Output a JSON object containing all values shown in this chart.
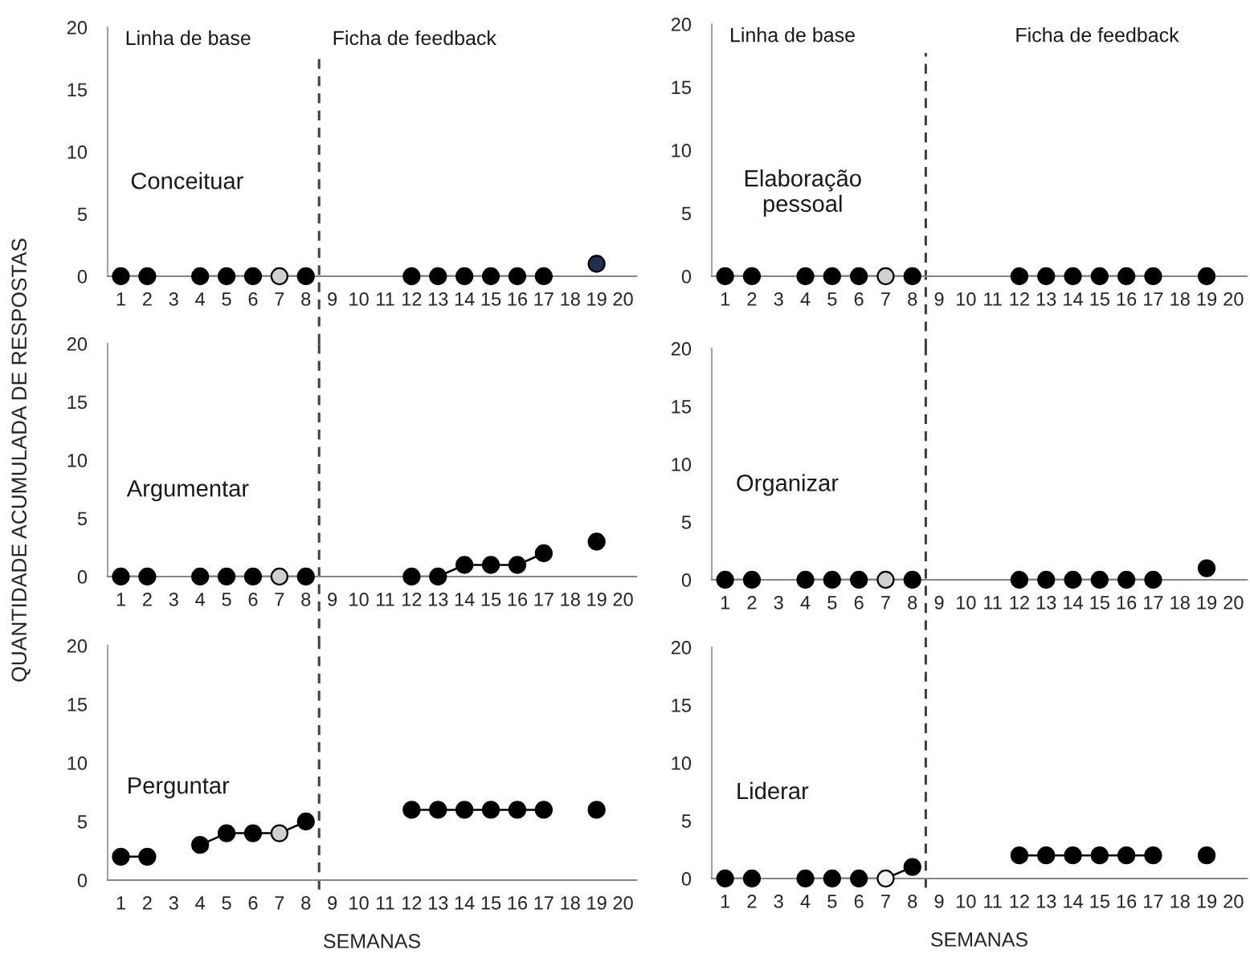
{
  "chart_data": [
    {
      "type": "line",
      "title": "Conceituar",
      "annotations": [
        "Linha de base",
        "Ficha de feedback"
      ],
      "x": [
        1,
        2,
        3,
        4,
        5,
        6,
        7,
        8,
        9,
        10,
        11,
        12,
        13,
        14,
        15,
        16,
        17,
        18,
        19
      ],
      "xlim": [
        0.5,
        20.5
      ],
      "xticks": [
        1,
        2,
        3,
        4,
        5,
        6,
        7,
        8,
        9,
        10,
        11,
        12,
        13,
        14,
        15,
        16,
        17,
        18,
        19,
        20
      ],
      "ylim": [
        0,
        20
      ],
      "yticks": [
        0,
        5,
        10,
        15,
        20
      ],
      "marker": "circle",
      "line_style": "solid",
      "series": [
        {
          "color": "#000000",
          "colors": [
            "#000000",
            "#000000",
            null,
            "#000000",
            "#000000",
            "#000000",
            "#d0d0d0",
            "#000000",
            null,
            null,
            null,
            "#000000",
            "#000000",
            "#000000",
            "#000000",
            "#000000",
            "#000000",
            null,
            "#1f3050"
          ],
          "values": [
            0,
            0,
            null,
            0,
            0,
            0,
            0,
            0,
            null,
            null,
            null,
            0,
            0,
            0,
            0,
            0,
            0,
            null,
            1
          ]
        }
      ],
      "ref_lines": [
        {
          "axis": "x",
          "value": 8.5,
          "color": "#404040",
          "line_style": "dashed"
        }
      ]
    },
    {
      "type": "line",
      "title": "Elaboração\npessoal",
      "annotations": [
        "Linha de base",
        "Ficha de feedback"
      ],
      "x": [
        1,
        2,
        3,
        4,
        5,
        6,
        7,
        8,
        9,
        10,
        11,
        12,
        13,
        14,
        15,
        16,
        17,
        18,
        19
      ],
      "xlim": [
        0.5,
        20.5
      ],
      "xticks": [
        1,
        2,
        3,
        4,
        5,
        6,
        7,
        8,
        9,
        10,
        11,
        12,
        13,
        14,
        15,
        16,
        17,
        18,
        19,
        20
      ],
      "ylim": [
        0,
        20
      ],
      "yticks": [
        0,
        5,
        10,
        15,
        20
      ],
      "marker": "circle",
      "line_style": "solid",
      "series": [
        {
          "color": "#000000",
          "colors": [
            "#000000",
            "#000000",
            null,
            "#000000",
            "#000000",
            "#000000",
            "#d0d0d0",
            "#000000",
            null,
            null,
            null,
            "#000000",
            "#000000",
            "#000000",
            "#000000",
            "#000000",
            "#000000",
            null,
            "#000000"
          ],
          "values": [
            0,
            0,
            null,
            0,
            0,
            0,
            0,
            0,
            null,
            null,
            null,
            0,
            0,
            0,
            0,
            0,
            0,
            null,
            0
          ]
        }
      ],
      "ref_lines": [
        {
          "axis": "x",
          "value": 8.5,
          "color": "#404040",
          "line_style": "dashed"
        }
      ]
    },
    {
      "type": "line",
      "title": "Argumentar",
      "ylabel": "QUANTIDADE ACUMULADA DE RESPOSTAS",
      "x": [
        1,
        2,
        3,
        4,
        5,
        6,
        7,
        8,
        9,
        10,
        11,
        12,
        13,
        14,
        15,
        16,
        17,
        18,
        19
      ],
      "xlim": [
        0.5,
        20.5
      ],
      "xticks": [
        1,
        2,
        3,
        4,
        5,
        6,
        7,
        8,
        9,
        10,
        11,
        12,
        13,
        14,
        15,
        16,
        17,
        18,
        19,
        20
      ],
      "ylim": [
        0,
        20
      ],
      "yticks": [
        0,
        5,
        10,
        15,
        20
      ],
      "marker": "circle",
      "line_style": "solid",
      "series": [
        {
          "color": "#000000",
          "colors": [
            "#000000",
            "#000000",
            null,
            "#000000",
            "#000000",
            "#000000",
            "#d0d0d0",
            "#000000",
            null,
            null,
            null,
            "#000000",
            "#000000",
            "#000000",
            "#000000",
            "#000000",
            "#000000",
            null,
            "#000000"
          ],
          "values": [
            0,
            0,
            null,
            0,
            0,
            0,
            0,
            0,
            null,
            null,
            null,
            0,
            0,
            1,
            1,
            1,
            2,
            null,
            3
          ]
        }
      ],
      "ref_lines": [
        {
          "axis": "x",
          "value": 8.5,
          "color": "#404040",
          "line_style": "dashed"
        }
      ]
    },
    {
      "type": "line",
      "title": "Organizar",
      "x": [
        1,
        2,
        3,
        4,
        5,
        6,
        7,
        8,
        9,
        10,
        11,
        12,
        13,
        14,
        15,
        16,
        17,
        18,
        19
      ],
      "xlim": [
        0.5,
        20.5
      ],
      "xticks": [
        1,
        2,
        3,
        4,
        5,
        6,
        7,
        8,
        9,
        10,
        11,
        12,
        13,
        14,
        15,
        16,
        17,
        18,
        19,
        20
      ],
      "ylim": [
        0,
        20
      ],
      "yticks": [
        0,
        5,
        10,
        15,
        20
      ],
      "marker": "circle",
      "line_style": "solid",
      "series": [
        {
          "color": "#000000",
          "colors": [
            "#000000",
            "#000000",
            null,
            "#000000",
            "#000000",
            "#000000",
            "#d0d0d0",
            "#000000",
            null,
            null,
            null,
            "#000000",
            "#000000",
            "#000000",
            "#000000",
            "#000000",
            "#000000",
            null,
            "#000000"
          ],
          "values": [
            0,
            0,
            null,
            0,
            0,
            0,
            0,
            0,
            null,
            null,
            null,
            0,
            0,
            0,
            0,
            0,
            0,
            null,
            1
          ]
        }
      ],
      "ref_lines": [
        {
          "axis": "x",
          "value": 8.5,
          "color": "#404040",
          "line_style": "dashed"
        }
      ]
    },
    {
      "type": "line",
      "title": "Perguntar",
      "xlabel": "SEMANAS",
      "x": [
        1,
        2,
        3,
        4,
        5,
        6,
        7,
        8,
        9,
        10,
        11,
        12,
        13,
        14,
        15,
        16,
        17,
        18,
        19
      ],
      "xlim": [
        0.5,
        20.5
      ],
      "xticks": [
        1,
        2,
        3,
        4,
        5,
        6,
        7,
        8,
        9,
        10,
        11,
        12,
        13,
        14,
        15,
        16,
        17,
        18,
        19,
        20
      ],
      "ylim": [
        0,
        20
      ],
      "yticks": [
        0,
        5,
        10,
        15,
        20
      ],
      "marker": "circle",
      "line_style": "solid",
      "series": [
        {
          "color": "#000000",
          "colors": [
            "#000000",
            "#000000",
            null,
            "#000000",
            "#000000",
            "#000000",
            "#d0d0d0",
            "#000000",
            null,
            null,
            null,
            "#000000",
            "#000000",
            "#000000",
            "#000000",
            "#000000",
            "#000000",
            null,
            "#000000"
          ],
          "values": [
            2,
            2,
            null,
            3,
            4,
            4,
            4,
            5,
            null,
            null,
            null,
            6,
            6,
            6,
            6,
            6,
            6,
            null,
            6
          ]
        }
      ],
      "ref_lines": [
        {
          "axis": "x",
          "value": 8.5,
          "color": "#404040",
          "line_style": "dashed"
        }
      ]
    },
    {
      "type": "line",
      "title": "Liderar",
      "xlabel": "SEMANAS",
      "x": [
        1,
        2,
        3,
        4,
        5,
        6,
        7,
        8,
        9,
        10,
        11,
        12,
        13,
        14,
        15,
        16,
        17,
        18,
        19
      ],
      "xlim": [
        0.5,
        20.5
      ],
      "xticks": [
        1,
        2,
        3,
        4,
        5,
        6,
        7,
        8,
        9,
        10,
        11,
        12,
        13,
        14,
        15,
        16,
        17,
        18,
        19,
        20
      ],
      "ylim": [
        0,
        20
      ],
      "yticks": [
        0,
        5,
        10,
        15,
        20
      ],
      "marker": "circle",
      "line_style": "solid",
      "series": [
        {
          "color": "#000000",
          "colors": [
            "#000000",
            "#000000",
            null,
            "#000000",
            "#000000",
            "#000000",
            "#f4f4f4",
            "#000000",
            null,
            null,
            null,
            "#000000",
            "#000000",
            "#000000",
            "#000000",
            "#000000",
            "#000000",
            null,
            "#000000"
          ],
          "values": [
            0,
            0,
            null,
            0,
            0,
            0,
            0,
            1,
            null,
            null,
            null,
            2,
            2,
            2,
            2,
            2,
            2,
            null,
            2
          ]
        }
      ],
      "ref_lines": [
        {
          "axis": "x",
          "value": 8.5,
          "color": "#404040",
          "line_style": "dashed"
        }
      ]
    }
  ]
}
